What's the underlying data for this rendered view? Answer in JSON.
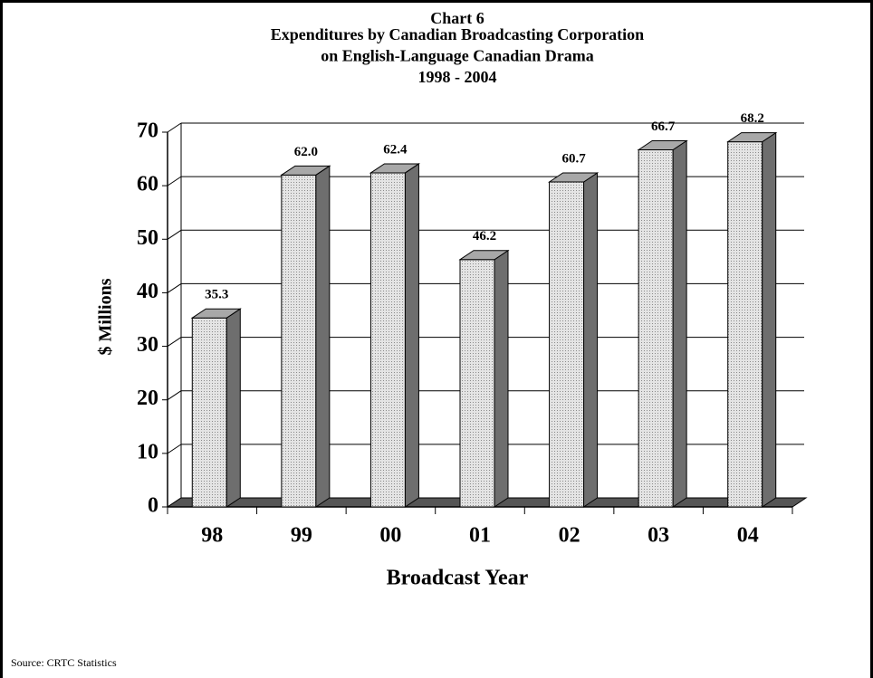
{
  "chart_data": {
    "type": "bar3d",
    "title": "Chart 6",
    "subtitle": [
      "Expenditures by Canadian Broadcasting Corporation",
      "on English-Language Canadian Drama",
      "1998 - 2004"
    ],
    "x_label": "Broadcast Year",
    "y_label": "$ Millions",
    "categories": [
      "98",
      "99",
      "00",
      "01",
      "02",
      "03",
      "04"
    ],
    "values": [
      35.3,
      62.0,
      62.4,
      46.2,
      60.7,
      66.7,
      68.2
    ],
    "value_labels": [
      "35.3",
      "62.0",
      "62.4",
      "46.2",
      "60.7",
      "66.7",
      "68.2"
    ],
    "color": "#d4d4d4",
    "ylim": [
      0,
      70
    ],
    "yticks": [
      0,
      10,
      20,
      30,
      40,
      50,
      60,
      70
    ],
    "grid": true,
    "source": "Source:  CRTC Statistics"
  }
}
